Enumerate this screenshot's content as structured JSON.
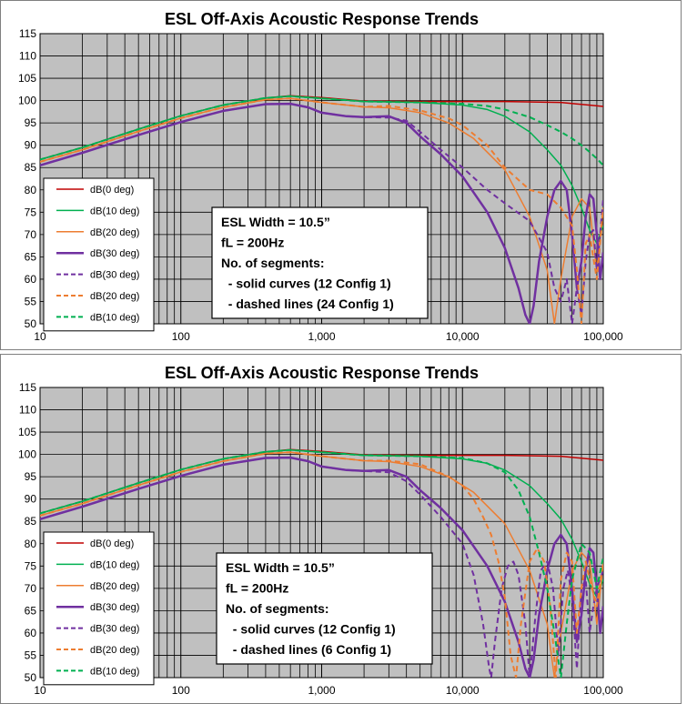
{
  "chart_data": [
    {
      "type": "line",
      "title": "ESL Off-Axis Acoustic Response Trends",
      "xscale": "log",
      "xlim": [
        10,
        100000
      ],
      "ylim": [
        50,
        115
      ],
      "x_ticks": [
        "10",
        "100",
        "1,000",
        "10,000",
        "100,000"
      ],
      "y_ticks": [
        "50",
        "55",
        "60",
        "65",
        "70",
        "75",
        "80",
        "85",
        "90",
        "95",
        "100",
        "105",
        "110",
        "115"
      ],
      "grid": true,
      "legend_position": "bottom-left",
      "annotation": [
        "ESL Width = 10.5”",
        "fL = 200Hz",
        "No. of segments:",
        "  - solid curves (12 Config 1)",
        "  - dashed lines (24 Config 1)"
      ],
      "series": [
        {
          "name": "dB(0 deg)",
          "color": "#c00000",
          "dash": false,
          "width": 1.5,
          "x": [
            10,
            20,
            50,
            100,
            200,
            400,
            600,
            1000,
            2000,
            5000,
            10000,
            20000,
            50000,
            100000
          ],
          "y": [
            86.8,
            89.5,
            93.6,
            96.6,
            99.0,
            100.6,
            101.1,
            100.7,
            99.9,
            99.8,
            99.8,
            99.8,
            99.6,
            98.7
          ]
        },
        {
          "name": "dB(10 deg)",
          "color": "#00b050",
          "dash": false,
          "width": 1.5,
          "x": [
            10,
            20,
            50,
            100,
            200,
            400,
            600,
            1000,
            2000,
            5000,
            10000,
            15000,
            20000,
            30000,
            40000,
            50000,
            60000,
            70000,
            80000,
            90000,
            100000
          ],
          "y": [
            86.8,
            89.5,
            93.6,
            96.6,
            99.0,
            100.6,
            101.0,
            100.5,
            99.8,
            99.6,
            99.0,
            98.0,
            96.5,
            93.0,
            89.0,
            85.5,
            81.0,
            76.0,
            71.0,
            68.0,
            72.0
          ]
        },
        {
          "name": "dB(20 deg)",
          "color": "#ed7d31",
          "dash": false,
          "width": 1.5,
          "x": [
            10,
            20,
            50,
            100,
            200,
            400,
            600,
            1000,
            2000,
            3000,
            5000,
            8000,
            12000,
            20000,
            30000,
            40000,
            45000,
            50000,
            60000,
            70000,
            80000,
            90000,
            100000
          ],
          "y": [
            86.3,
            89.0,
            93.1,
            96.1,
            98.5,
            100.2,
            100.5,
            99.6,
            98.6,
            98.4,
            97.3,
            95.0,
            91.5,
            84.5,
            74.0,
            62.0,
            50.0,
            60.0,
            74.0,
            78.0,
            76.0,
            62.0,
            76.0
          ]
        },
        {
          "name": "dB(30 deg)",
          "color": "#7030a0",
          "dash": false,
          "width": 2.5,
          "x": [
            10,
            20,
            50,
            100,
            200,
            400,
            600,
            800,
            1000,
            1500,
            2000,
            3000,
            4000,
            5000,
            7000,
            10000,
            15000,
            20000,
            25000,
            28000,
            30000,
            32000,
            35000,
            40000,
            45000,
            50000,
            55000,
            60000,
            65000,
            70000,
            75000,
            80000,
            85000,
            90000,
            95000,
            100000
          ],
          "y": [
            85.5,
            88.3,
            92.3,
            95.2,
            97.7,
            99.2,
            99.3,
            98.5,
            97.3,
            96.5,
            96.3,
            96.5,
            95.0,
            92.0,
            88.0,
            83.0,
            75.0,
            67.0,
            58.0,
            52.0,
            50.0,
            54.0,
            64.0,
            74.0,
            80.0,
            82.0,
            80.0,
            70.0,
            58.0,
            64.0,
            74.0,
            79.0,
            78.0,
            70.0,
            60.0,
            66.0
          ]
        },
        {
          "name": "dB(30 deg)",
          "color": "#7030a0",
          "dash": true,
          "width": 2.0,
          "x": [
            10,
            20,
            50,
            100,
            200,
            400,
            600,
            800,
            1000,
            1500,
            2000,
            3000,
            4000,
            5000,
            7000,
            10000,
            15000,
            20000,
            30000,
            40000,
            45000,
            50000,
            55000,
            60000,
            65000,
            70000,
            75000,
            80000,
            85000,
            90000,
            100000
          ],
          "y": [
            85.5,
            88.3,
            92.3,
            95.2,
            97.7,
            99.2,
            99.3,
            98.5,
            97.3,
            96.5,
            96.3,
            96.2,
            95.5,
            93.0,
            89.0,
            85.0,
            80.0,
            77.0,
            73.0,
            66.0,
            58.0,
            55.0,
            60.0,
            50.0,
            58.0,
            52.0,
            64.0,
            70.0,
            71.0,
            62.0,
            78.0
          ]
        },
        {
          "name": "dB(20 deg)",
          "color": "#ed7d31",
          "dash": true,
          "width": 2.0,
          "x": [
            10,
            20,
            50,
            100,
            200,
            400,
            600,
            1000,
            2000,
            3000,
            5000,
            8000,
            10000,
            15000,
            20000,
            30000,
            40000,
            50000,
            60000,
            65000,
            70000,
            75000,
            80000,
            90000,
            100000
          ],
          "y": [
            86.3,
            89.0,
            93.1,
            96.1,
            98.5,
            100.2,
            100.5,
            99.6,
            98.6,
            98.8,
            97.8,
            96.0,
            94.5,
            90.0,
            85.0,
            80.0,
            79.0,
            76.0,
            72.0,
            62.0,
            50.0,
            68.0,
            70.0,
            60.0,
            76.0
          ]
        },
        {
          "name": "dB(10 deg)",
          "color": "#00b050",
          "dash": true,
          "width": 2.0,
          "x": [
            10,
            20,
            50,
            100,
            200,
            400,
            600,
            1000,
            2000,
            5000,
            10000,
            15000,
            20000,
            30000,
            40000,
            50000,
            60000,
            70000,
            80000,
            90000,
            100000
          ],
          "y": [
            86.8,
            89.5,
            93.6,
            96.6,
            99.0,
            100.6,
            101.0,
            100.5,
            99.8,
            99.6,
            99.3,
            98.8,
            98.0,
            96.3,
            94.5,
            93.0,
            91.5,
            90.0,
            88.5,
            87.0,
            85.5
          ]
        }
      ]
    },
    {
      "type": "line",
      "title": "ESL Off-Axis Acoustic Response Trends",
      "xscale": "log",
      "xlim": [
        10,
        100000
      ],
      "ylim": [
        50,
        115
      ],
      "x_ticks": [
        "10",
        "100",
        "1,000",
        "10,000",
        "100,000"
      ],
      "y_ticks": [
        "50",
        "55",
        "60",
        "65",
        "70",
        "75",
        "80",
        "85",
        "90",
        "95",
        "100",
        "105",
        "110",
        "115"
      ],
      "grid": true,
      "legend_position": "bottom-left",
      "annotation": [
        "ESL Width = 10.5”",
        "fL = 200Hz",
        "No. of segments:",
        "  - solid curves (12 Config 1)",
        "  - dashed lines (6 Config 1)"
      ],
      "series": [
        {
          "name": "dB(0 deg)",
          "color": "#c00000",
          "dash": false,
          "width": 1.5,
          "x": [
            10,
            20,
            50,
            100,
            200,
            400,
            600,
            1000,
            2000,
            5000,
            10000,
            20000,
            50000,
            100000
          ],
          "y": [
            86.8,
            89.5,
            93.6,
            96.6,
            99.0,
            100.6,
            101.1,
            100.7,
            99.9,
            99.8,
            99.8,
            99.8,
            99.6,
            98.7
          ]
        },
        {
          "name": "dB(10 deg)",
          "color": "#00b050",
          "dash": false,
          "width": 1.5,
          "x": [
            10,
            20,
            50,
            100,
            200,
            400,
            600,
            1000,
            2000,
            5000,
            10000,
            15000,
            20000,
            30000,
            40000,
            50000,
            60000,
            70000,
            80000,
            90000,
            100000
          ],
          "y": [
            86.8,
            89.5,
            93.6,
            96.6,
            99.0,
            100.6,
            101.0,
            100.5,
            99.8,
            99.6,
            99.0,
            98.0,
            96.5,
            93.0,
            89.0,
            85.5,
            81.0,
            76.0,
            71.0,
            68.0,
            72.0
          ]
        },
        {
          "name": "dB(20 deg)",
          "color": "#ed7d31",
          "dash": false,
          "width": 1.5,
          "x": [
            10,
            20,
            50,
            100,
            200,
            400,
            600,
            1000,
            2000,
            3000,
            5000,
            8000,
            12000,
            20000,
            30000,
            40000,
            45000,
            50000,
            60000,
            70000,
            80000,
            90000,
            100000
          ],
          "y": [
            86.3,
            89.0,
            93.1,
            96.1,
            98.5,
            100.2,
            100.5,
            99.6,
            98.6,
            98.4,
            97.3,
            95.0,
            91.5,
            84.5,
            74.0,
            62.0,
            50.0,
            60.0,
            74.0,
            78.0,
            76.0,
            62.0,
            76.0
          ]
        },
        {
          "name": "dB(30 deg)",
          "color": "#7030a0",
          "dash": false,
          "width": 2.5,
          "x": [
            10,
            20,
            50,
            100,
            200,
            400,
            600,
            800,
            1000,
            1500,
            2000,
            3000,
            4000,
            5000,
            7000,
            10000,
            15000,
            20000,
            25000,
            28000,
            30000,
            32000,
            35000,
            40000,
            45000,
            50000,
            55000,
            60000,
            65000,
            70000,
            75000,
            80000,
            85000,
            90000,
            95000,
            100000
          ],
          "y": [
            85.5,
            88.3,
            92.3,
            95.2,
            97.7,
            99.2,
            99.3,
            98.5,
            97.3,
            96.5,
            96.3,
            96.5,
            95.0,
            92.0,
            88.0,
            83.0,
            75.0,
            67.0,
            58.0,
            52.0,
            50.0,
            54.0,
            64.0,
            74.0,
            80.0,
            82.0,
            80.0,
            70.0,
            58.0,
            64.0,
            74.0,
            79.0,
            78.0,
            70.0,
            60.0,
            66.0
          ]
        },
        {
          "name": "dB(30 deg)",
          "color": "#7030a0",
          "dash": true,
          "width": 2.0,
          "x": [
            10,
            20,
            50,
            100,
            200,
            400,
            600,
            800,
            1000,
            1500,
            2000,
            3000,
            4000,
            5000,
            7000,
            10000,
            12000,
            14000,
            15500,
            16000,
            17000,
            19000,
            21000,
            23000,
            25000,
            28000,
            30000,
            33000,
            36000,
            40000,
            44000,
            48000,
            52000,
            56000,
            60000,
            65000,
            70000,
            75000,
            80000,
            85000,
            90000,
            100000
          ],
          "y": [
            85.5,
            88.3,
            92.3,
            95.2,
            97.7,
            99.2,
            99.3,
            98.5,
            97.3,
            96.5,
            96.3,
            96.0,
            94.0,
            91.0,
            86.0,
            80.0,
            73.0,
            62.0,
            52.0,
            50.0,
            58.0,
            70.0,
            75.0,
            76.0,
            73.0,
            62.0,
            50.0,
            64.0,
            74.0,
            76.0,
            70.0,
            55.0,
            70.0,
            74.0,
            68.0,
            52.0,
            70.0,
            72.0,
            60.0,
            66.0,
            70.0,
            74.0
          ]
        },
        {
          "name": "dB(20 deg)",
          "color": "#ed7d31",
          "dash": true,
          "width": 2.0,
          "x": [
            10,
            20,
            50,
            100,
            200,
            400,
            600,
            1000,
            2000,
            3000,
            5000,
            8000,
            10000,
            12000,
            14000,
            16000,
            18000,
            20000,
            22000,
            24000,
            26000,
            30000,
            34000,
            38000,
            42000,
            46000,
            50000,
            55000,
            60000,
            65000,
            70000,
            75000,
            80000,
            90000,
            100000
          ],
          "y": [
            86.3,
            89.0,
            93.1,
            96.1,
            98.5,
            100.2,
            100.5,
            99.6,
            98.6,
            98.6,
            97.8,
            95.0,
            93.0,
            90.0,
            86.0,
            82.0,
            76.0,
            68.0,
            55.0,
            50.0,
            62.0,
            76.0,
            79.0,
            76.0,
            66.0,
            50.0,
            72.0,
            78.0,
            76.0,
            60.0,
            70.0,
            76.0,
            72.0,
            66.0,
            76.0
          ]
        },
        {
          "name": "dB(10 deg)",
          "color": "#00b050",
          "dash": true,
          "width": 2.0,
          "x": [
            10,
            20,
            50,
            100,
            200,
            400,
            600,
            1000,
            2000,
            5000,
            10000,
            15000,
            20000,
            25000,
            30000,
            35000,
            40000,
            45000,
            50000,
            55000,
            60000,
            70000,
            80000,
            90000,
            100000
          ],
          "y": [
            86.8,
            89.5,
            93.6,
            96.6,
            99.0,
            100.6,
            101.0,
            100.5,
            99.8,
            99.6,
            99.2,
            98.0,
            96.0,
            92.0,
            86.0,
            78.0,
            70.0,
            60.0,
            50.0,
            62.0,
            72.0,
            80.0,
            78.0,
            70.0,
            77.0
          ]
        }
      ]
    }
  ]
}
